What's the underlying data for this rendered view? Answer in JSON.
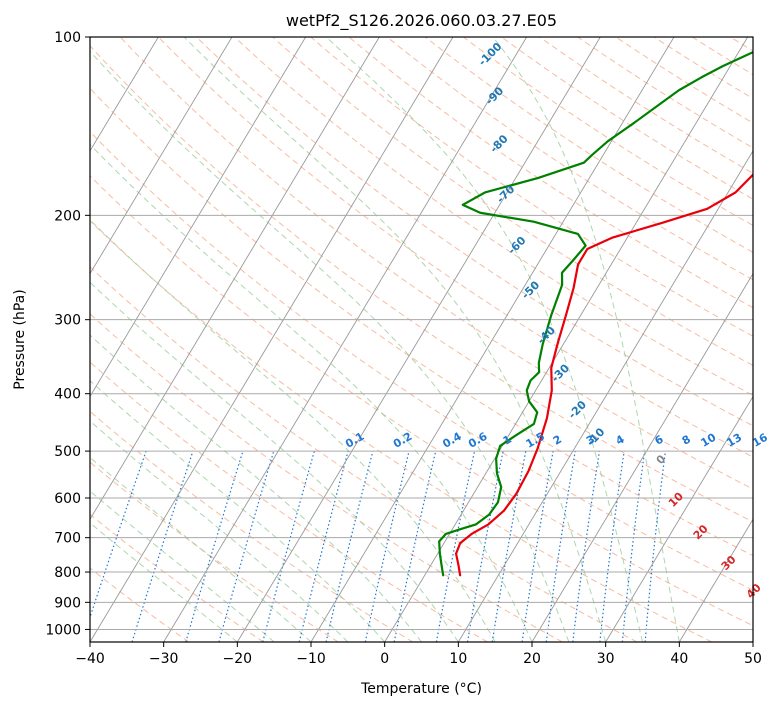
{
  "chart_data": {
    "type": "line",
    "title": "wetPf2_S126.2026.060.03.27.E05",
    "xlabel": "Temperature (°C)",
    "ylabel": "Pressure (hPa)",
    "xlim": [
      -40,
      50
    ],
    "ylim": [
      1050,
      100
    ],
    "x_ticks": [
      -40,
      -30,
      -20,
      -10,
      0,
      10,
      20,
      30,
      40,
      50
    ],
    "x_tick_labels": [
      "−40",
      "−30",
      "−20",
      "−10",
      "0",
      "10",
      "20",
      "30",
      "40",
      "50"
    ],
    "y_ticks": [
      100,
      200,
      300,
      400,
      500,
      600,
      700,
      800,
      900,
      1000
    ],
    "y_tick_labels": [
      "100",
      "200",
      "300",
      "400",
      "500",
      "600",
      "700",
      "800",
      "900",
      "1000"
    ],
    "grid": true,
    "colors": {
      "temperature": "#e8000b",
      "dewpoint": "#008000",
      "dry_adiabat": "#f4a582",
      "moist_adiabat": "#99cc99",
      "mixing_ratio": "#1f77d4",
      "isotherm": "#999999",
      "theta_e_label": "#1f77b4",
      "lcl_label": "#d62728"
    },
    "series": [
      {
        "name": "Temperature",
        "points": [
          [
            4.8,
            810
          ],
          [
            3.8,
            780
          ],
          [
            2.5,
            745
          ],
          [
            2.2,
            715
          ],
          [
            3.0,
            690
          ],
          [
            4.5,
            665
          ],
          [
            5.5,
            630
          ],
          [
            5.8,
            590
          ],
          [
            5.6,
            540
          ],
          [
            5.0,
            495
          ],
          [
            3.8,
            440
          ],
          [
            2.2,
            395
          ],
          [
            0.3,
            362
          ],
          [
            -0.8,
            330
          ],
          [
            -2.0,
            295
          ],
          [
            -3.2,
            265
          ],
          [
            -4.5,
            242
          ],
          [
            -4.5,
            228
          ],
          [
            -2.0,
            218
          ],
          [
            3.5,
            206
          ],
          [
            8.5,
            195
          ],
          [
            11.0,
            183
          ],
          [
            12.0,
            170
          ],
          [
            12.0,
            160
          ],
          [
            13.0,
            152
          ],
          [
            17.0,
            143
          ],
          [
            22.0,
            133
          ],
          [
            26.0,
            124
          ],
          [
            28.5,
            116
          ],
          [
            30.0,
            110
          ],
          [
            31.5,
            104
          ],
          [
            32.5,
            100
          ]
        ]
      },
      {
        "name": "Dewpoint",
        "points": [
          [
            2.5,
            810
          ],
          [
            1.5,
            780
          ],
          [
            0.3,
            745
          ],
          [
            -0.8,
            710
          ],
          [
            -0.5,
            690
          ],
          [
            1.0,
            678
          ],
          [
            2.8,
            665
          ],
          [
            3.8,
            640
          ],
          [
            4.0,
            610
          ],
          [
            3.2,
            575
          ],
          [
            1.5,
            545
          ],
          [
            0.2,
            515
          ],
          [
            -0.3,
            490
          ],
          [
            1.0,
            470
          ],
          [
            2.5,
            450
          ],
          [
            2.0,
            430
          ],
          [
            0.0,
            412
          ],
          [
            -1.2,
            395
          ],
          [
            -1.5,
            380
          ],
          [
            -1.0,
            368
          ],
          [
            -1.8,
            355
          ],
          [
            -2.8,
            330
          ],
          [
            -4.0,
            295
          ],
          [
            -5.0,
            262
          ],
          [
            -6.0,
            250
          ],
          [
            -5.5,
            238
          ],
          [
            -5.0,
            225
          ],
          [
            -7.0,
            215
          ],
          [
            -14.0,
            205
          ],
          [
            -22.0,
            198
          ],
          [
            -25.0,
            192
          ],
          [
            -23.0,
            183
          ],
          [
            -17.0,
            173
          ],
          [
            -12.0,
            163
          ],
          [
            -11.5,
            158
          ],
          [
            -10.5,
            150
          ],
          [
            -8.5,
            140
          ],
          [
            -6.5,
            130
          ],
          [
            -5.0,
            123
          ],
          [
            -3.0,
            117
          ],
          [
            -1.0,
            112
          ],
          [
            2.0,
            106
          ],
          [
            3.0,
            103
          ],
          [
            4.5,
            100
          ]
        ]
      }
    ],
    "annotations": {
      "theta_e_labels": [
        {
          "text": "-100",
          "t": -33.0,
          "p": 108
        },
        {
          "text": "-90",
          "t": -29.0,
          "p": 127
        },
        {
          "text": "-80",
          "t": -24.5,
          "p": 153
        },
        {
          "text": "-70",
          "t": -19.5,
          "p": 186
        },
        {
          "text": "-60",
          "t": -13.8,
          "p": 227
        },
        {
          "text": "-50",
          "t": -8.3,
          "p": 270
        },
        {
          "text": "-40",
          "t": -2.5,
          "p": 322
        },
        {
          "text": "-30",
          "t": 2.5,
          "p": 373
        },
        {
          "text": "-20",
          "t": 7.8,
          "p": 430
        },
        {
          "text": "-10",
          "t": 12.5,
          "p": 478
        }
      ],
      "mixing_ratio_labels": [
        {
          "text": "0.1",
          "t": -20.0,
          "p": 485
        },
        {
          "text": "0.2",
          "t": -13.5,
          "p": 485
        },
        {
          "text": "0.4",
          "t": -6.8,
          "p": 485
        },
        {
          "text": "0.6",
          "t": -3.3,
          "p": 485
        },
        {
          "text": "1",
          "t": 0.7,
          "p": 485
        },
        {
          "text": "1.5",
          "t": 4.5,
          "p": 485
        },
        {
          "text": "2",
          "t": 7.5,
          "p": 485
        },
        {
          "text": "3",
          "t": 12.0,
          "p": 485
        },
        {
          "text": "4",
          "t": 16.0,
          "p": 485
        },
        {
          "text": "6",
          "t": 21.3,
          "p": 485
        },
        {
          "text": "8",
          "t": 25.0,
          "p": 485
        },
        {
          "text": "10",
          "t": 28.0,
          "p": 485
        },
        {
          "text": "13",
          "t": 31.5,
          "p": 485
        },
        {
          "text": "16",
          "t": 35.0,
          "p": 485
        },
        {
          "text": "20",
          "t": 38.5,
          "p": 485
        },
        {
          "text": "25",
          "t": 42.0,
          "p": 485
        },
        {
          "text": "30",
          "t": 44.8,
          "p": 485
        },
        {
          "text": "36",
          "t": 48.0,
          "p": 485
        }
      ],
      "lcl_labels": [
        {
          "text": "0",
          "t": 23.2,
          "p": 522,
          "color": "gray"
        },
        {
          "text": "10",
          "t": 28.5,
          "p": 610,
          "color": "red"
        },
        {
          "text": "20",
          "t": 34.5,
          "p": 692,
          "color": "red"
        },
        {
          "text": "30",
          "t": 40.8,
          "p": 780,
          "color": "red"
        },
        {
          "text": "40",
          "t": 46.5,
          "p": 870,
          "color": "red"
        }
      ]
    }
  }
}
